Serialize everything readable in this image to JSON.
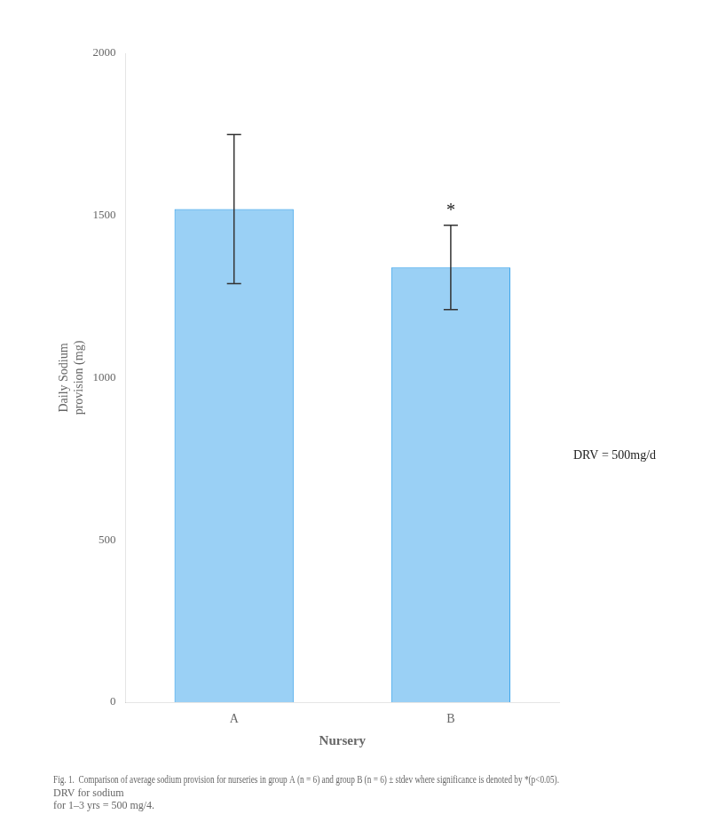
{
  "chart_data": {
    "type": "bar",
    "title": [
      "Fig. 1.  Comparison of average sodium provision for nurseries in group A (n = 6) and group B (n = 6) ± stdev where significance is denoted by *(p<0.05). DRV for sodium",
      "for 1–3 yrs = 500 mg/4."
    ],
    "xlabel": "Nursery",
    "ylabel": "Daily Sodium\nprovision (mg)",
    "categories": [
      "A",
      "B"
    ],
    "values": [
      1520,
      1340
    ],
    "errors": [
      230,
      130
    ],
    "ylim": [
      0,
      2000
    ],
    "yticks": [
      0,
      500,
      1000,
      1500,
      2000
    ],
    "grid": false,
    "annotations": [
      {
        "text": "*",
        "category": "B"
      },
      {
        "text": "DRV = 500mg/d"
      }
    ]
  }
}
